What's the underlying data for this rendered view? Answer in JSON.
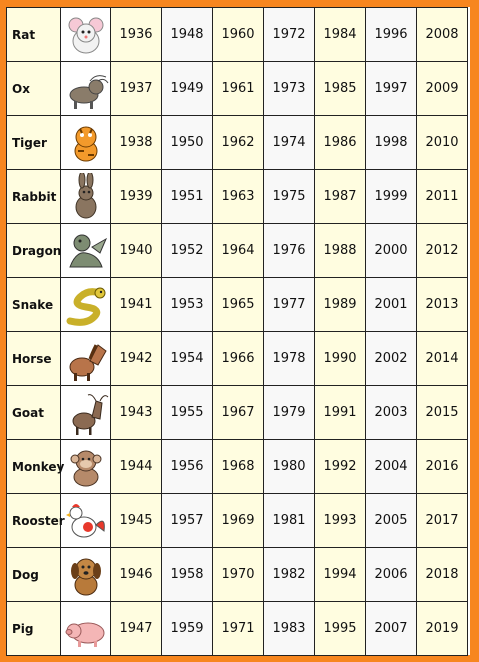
{
  "zodiac_rows": [
    {
      "animal": "Rat",
      "icon": "rat-icon",
      "years": [
        "1936",
        "1948",
        "1960",
        "1972",
        "1984",
        "1996",
        "2008"
      ]
    },
    {
      "animal": "Ox",
      "icon": "ox-icon",
      "years": [
        "1937",
        "1949",
        "1961",
        "1973",
        "1985",
        "1997",
        "2009"
      ]
    },
    {
      "animal": "Tiger",
      "icon": "tiger-icon",
      "years": [
        "1938",
        "1950",
        "1962",
        "1974",
        "1986",
        "1998",
        "2010"
      ]
    },
    {
      "animal": "Rabbit",
      "icon": "rabbit-icon",
      "years": [
        "1939",
        "1951",
        "1963",
        "1975",
        "1987",
        "1999",
        "2011"
      ]
    },
    {
      "animal": "Dragon",
      "icon": "dragon-icon",
      "years": [
        "1940",
        "1952",
        "1964",
        "1976",
        "1988",
        "2000",
        "2012"
      ]
    },
    {
      "animal": "Snake",
      "icon": "snake-icon",
      "years": [
        "1941",
        "1953",
        "1965",
        "1977",
        "1989",
        "2001",
        "2013"
      ]
    },
    {
      "animal": "Horse",
      "icon": "horse-icon",
      "years": [
        "1942",
        "1954",
        "1966",
        "1978",
        "1990",
        "2002",
        "2014"
      ]
    },
    {
      "animal": "Goat",
      "icon": "goat-icon",
      "years": [
        "1943",
        "1955",
        "1967",
        "1979",
        "1991",
        "2003",
        "2015"
      ]
    },
    {
      "animal": "Monkey",
      "icon": "monkey-icon",
      "years": [
        "1944",
        "1956",
        "1968",
        "1980",
        "1992",
        "2004",
        "2016"
      ]
    },
    {
      "animal": "Rooster",
      "icon": "rooster-icon",
      "years": [
        "1945",
        "1957",
        "1969",
        "1981",
        "1993",
        "2005",
        "2017"
      ]
    },
    {
      "animal": "Dog",
      "icon": "dog-icon",
      "years": [
        "1946",
        "1958",
        "1970",
        "1982",
        "1994",
        "2006",
        "2018"
      ]
    },
    {
      "animal": "Pig",
      "icon": "pig-icon",
      "years": [
        "1947",
        "1959",
        "1971",
        "1983",
        "1995",
        "2007",
        "2019"
      ]
    }
  ],
  "colors": {
    "border_orange": "#f7861f",
    "cell_cream": "#fffde0",
    "cell_grey": "#f8f8f8"
  }
}
